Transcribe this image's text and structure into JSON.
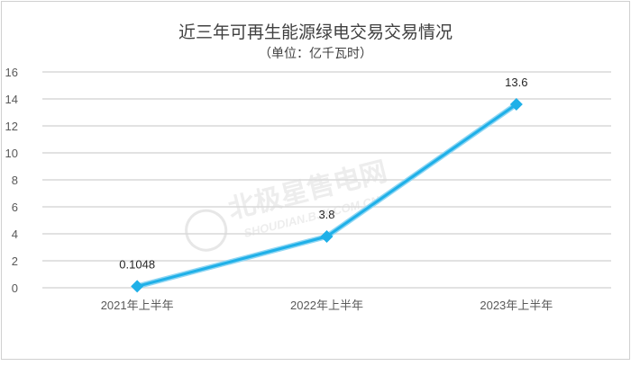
{
  "chart_data": {
    "type": "line",
    "title": "近三年可再生能源绿电交易交易情况",
    "subtitle": "（单位：亿千瓦时）",
    "categories": [
      "2021年上半年",
      "2022年上半年",
      "2023年上半年"
    ],
    "series": [
      {
        "values": [
          0.1048,
          3.8,
          13.6
        ],
        "color": "#1fb0e8"
      }
    ],
    "data_labels": [
      "0.1048",
      "3.8",
      "13.6"
    ],
    "ylim": [
      0,
      16
    ],
    "yticks": [
      0,
      2,
      4,
      6,
      8,
      10,
      12,
      14,
      16
    ],
    "grid": true,
    "legend": "none",
    "xlabel": "",
    "ylabel": ""
  },
  "watermark": {
    "text": "北极星售电网",
    "subtext": "SHOUDIAN.BJX.COM.CN"
  }
}
